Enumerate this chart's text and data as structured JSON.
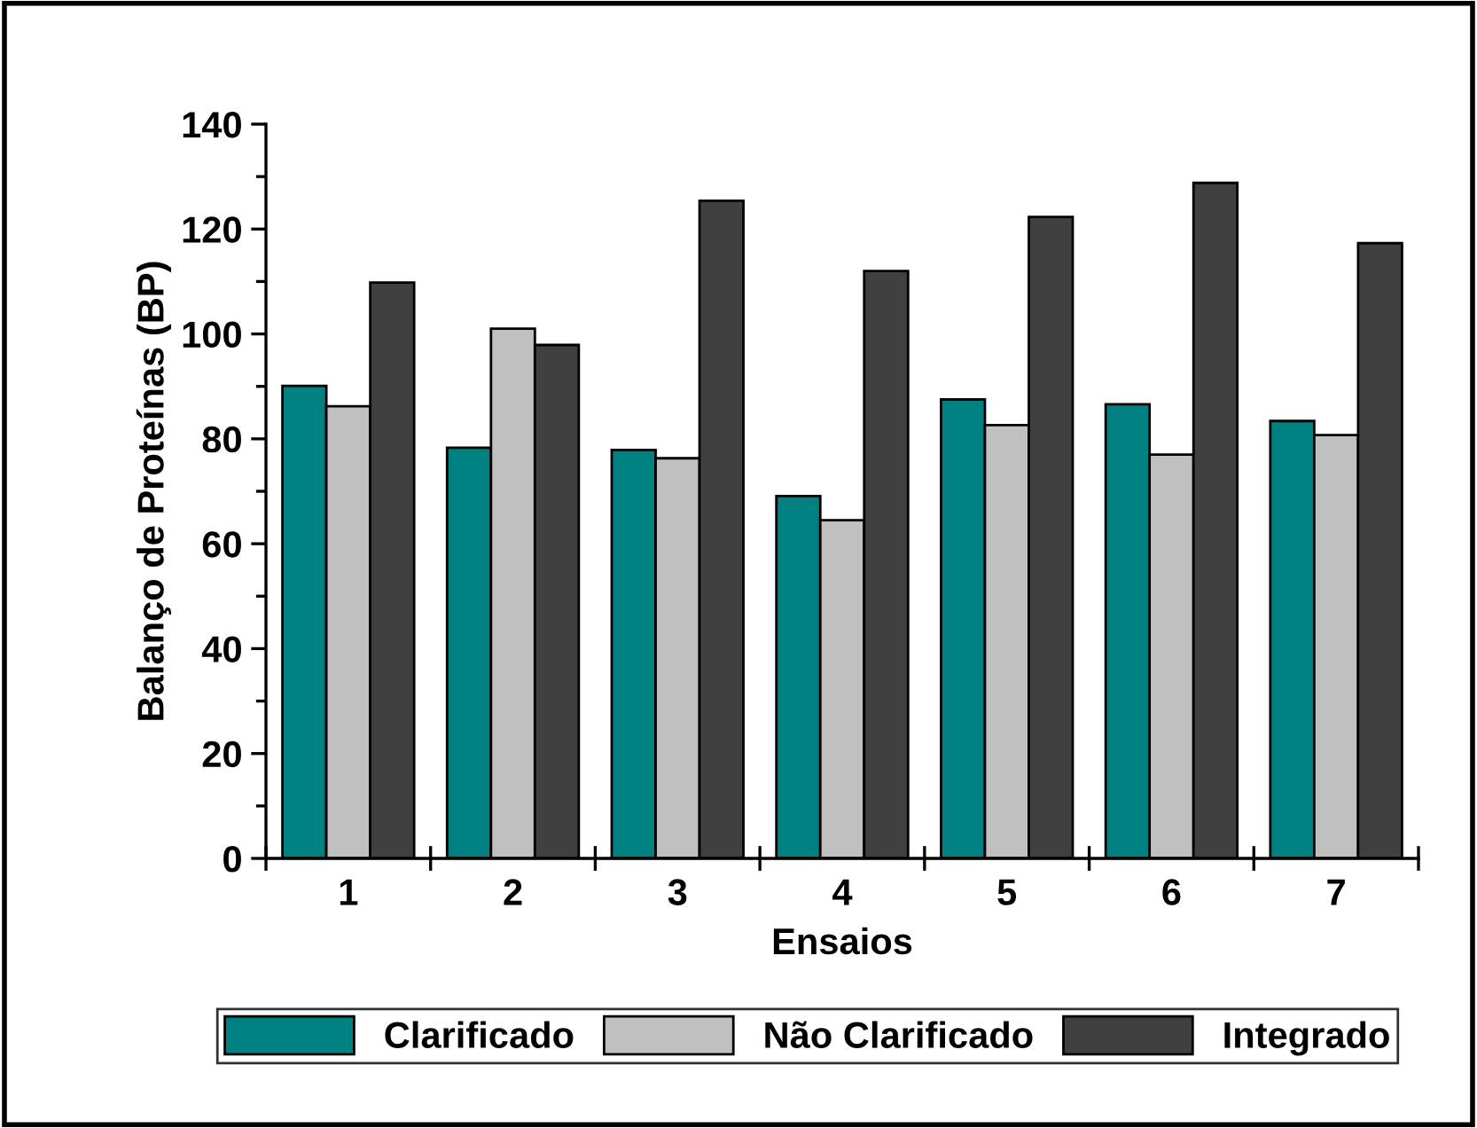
{
  "chart_data": {
    "type": "bar",
    "xlabel": "Ensaios",
    "ylabel": "Balanço de Proteínas (BP)",
    "categories": [
      "1",
      "2",
      "3",
      "4",
      "5",
      "6",
      "7"
    ],
    "series": [
      {
        "name": "Clarificado",
        "color": "#008080",
        "values": [
          90.1,
          78.3,
          77.9,
          69.1,
          87.5,
          86.6,
          83.4
        ]
      },
      {
        "name": "Não Clarificado",
        "color": "#c0c0c0",
        "values": [
          86.2,
          101.0,
          76.3,
          64.5,
          82.6,
          77.0,
          80.7
        ]
      },
      {
        "name": "Integrado",
        "color": "#404040",
        "values": [
          109.8,
          97.9,
          125.4,
          112.0,
          122.3,
          128.8,
          117.3
        ]
      }
    ],
    "ylim": [
      0,
      140
    ],
    "yticks": [
      0,
      20,
      40,
      60,
      80,
      100,
      120,
      140
    ],
    "grid": false,
    "legend": "bottom"
  }
}
